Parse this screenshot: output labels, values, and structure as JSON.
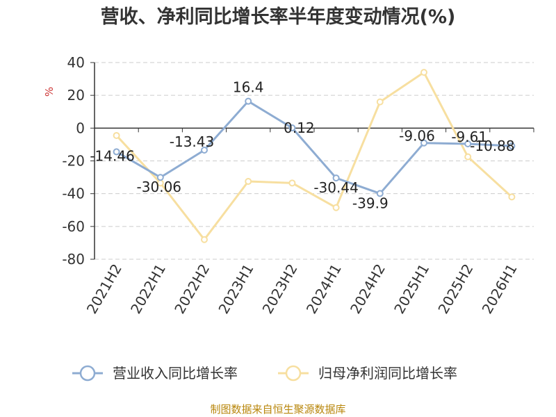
{
  "chart_data": {
    "type": "line",
    "title": "营收、净利同比增长率半年度变动情况(%)",
    "ylabel": "%",
    "ylim": [
      -80,
      40
    ],
    "yticks": [
      40,
      20,
      0,
      -20,
      -40,
      -60,
      -80
    ],
    "grid": true,
    "legend_position": "bottom",
    "categories": [
      "2021H2",
      "2022H1",
      "2022H2",
      "2023H1",
      "2023H2",
      "2024H1",
      "2024H2",
      "2025H1",
      "2025H2",
      "2026H1"
    ],
    "series": [
      {
        "name": "营业收入同比增长率",
        "color": "#8eacd2",
        "values": [
          -14.46,
          -30.06,
          -13.43,
          16.4,
          0.12,
          -30.44,
          -39.9,
          -9.06,
          -9.61,
          -10.88
        ],
        "labels": [
          "-14.46",
          "-30.06",
          "-13.43",
          "16.4",
          "0.12",
          "-30.44",
          "-39.9",
          "-9.06",
          "-9.61",
          "-10.88"
        ]
      },
      {
        "name": "归母净利润同比增长率",
        "color": "#f7dfa0",
        "values": [
          -4.5,
          -33.5,
          -68,
          -32.5,
          -33.5,
          -48.5,
          16,
          34,
          -17.5,
          -42
        ]
      }
    ],
    "source": "制图数据来自恒生聚源数据库"
  }
}
